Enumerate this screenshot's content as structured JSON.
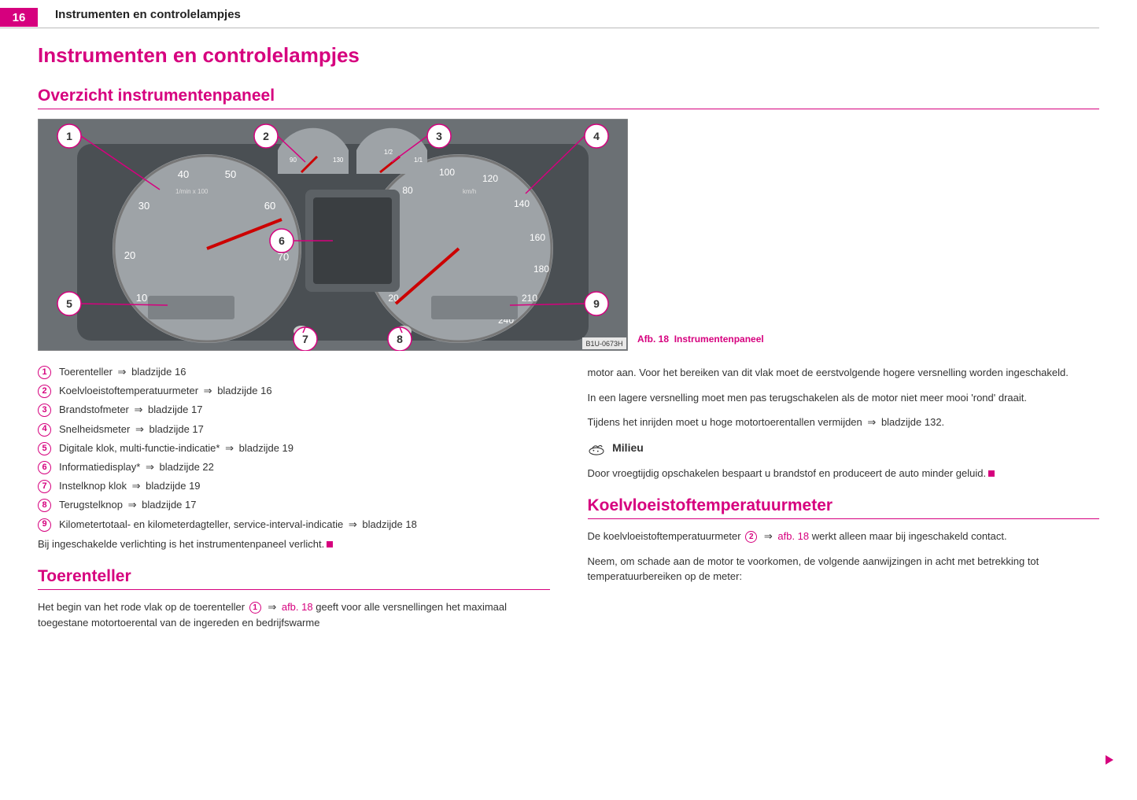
{
  "page_number": "16",
  "chapter_title": "Instrumenten en controlelampjes",
  "h1": "Instrumenten en controlelampjes",
  "h2_overview": "Overzicht instrumentenpaneel",
  "figure": {
    "caption_prefix": "Afb. 18",
    "caption_text": "Instrumentenpaneel",
    "image_code": "B1U-0673H",
    "bg": "#6b7074",
    "gauge_face": "#9ea3a7",
    "callout_color": "#d6007e",
    "tacho": {
      "ticks": [
        "10",
        "20",
        "30",
        "40",
        "50",
        "60",
        "70"
      ],
      "sublabel": "1/min x 100"
    },
    "speedo": {
      "ticks": [
        "20",
        "40",
        "60",
        "80",
        "100",
        "120",
        "140",
        "160",
        "180",
        "210",
        "240"
      ],
      "sublabel": "km/h"
    },
    "small_gauges": {
      "temp_max": "130",
      "temp_mid": "90",
      "fuel_half": "1/2",
      "fuel_full": "1/1"
    },
    "callouts": [
      "1",
      "2",
      "3",
      "4",
      "5",
      "6",
      "7",
      "8",
      "9"
    ]
  },
  "legend": [
    {
      "n": "1",
      "text": "Toerenteller",
      "page": "bladzijde 16"
    },
    {
      "n": "2",
      "text": "Koelvloeistoftemperatuurmeter",
      "page": "bladzijde 16"
    },
    {
      "n": "3",
      "text": "Brandstofmeter",
      "page": "bladzijde 17"
    },
    {
      "n": "4",
      "text": "Snelheidsmeter",
      "page": "bladzijde 17"
    },
    {
      "n": "5",
      "text": "Digitale klok, multi-functie-indicatie*",
      "page": "bladzijde 19"
    },
    {
      "n": "6",
      "text": "Informatiedisplay*",
      "page": "bladzijde 22"
    },
    {
      "n": "7",
      "text": "Instelknop klok",
      "page": "bladzijde 19"
    },
    {
      "n": "8",
      "text": "Terugstelknop",
      "page": "bladzijde 17"
    },
    {
      "n": "9",
      "text": "Kilometertotaal- en kilometerdagteller, service-interval-indicatie",
      "page": "bladzijde 18"
    }
  ],
  "footnote": "Bij ingeschakelde verlichting is het instrumentenpaneel verlicht.",
  "h2_toerenteller": "Toerenteller",
  "toerenteller_para_a": "Het begin van het rode vlak op de toerenteller",
  "toerenteller_ref": "afb. 18",
  "toerenteller_para_b": "geeft voor alle versnellingen het maximaal toegestane motortoerental van de ingereden en bedrijfswarme",
  "right_col": {
    "p1": "motor aan. Voor het bereiken van dit vlak moet de eerstvolgende hogere versnelling worden ingeschakeld.",
    "p2": "In een lagere versnelling moet men pas terugschakelen als de motor niet meer mooi 'rond' draait.",
    "p3a": "Tijdens het inrijden moet u hoge motortoerentallen vermijden",
    "p3_page": "bladzijde 132.",
    "milieu_label": "Milieu",
    "milieu_text": "Door vroegtijdig opschakelen bespaart u brandstof en produceert de auto minder geluid."
  },
  "h2_koelvloeistof": "Koelvloeistoftemperatuurmeter",
  "koel_p1a": "De koelvloeistoftemperatuurmeter",
  "koel_ref": "afb. 18",
  "koel_p1b": "werkt alleen maar bij ingeschakeld contact.",
  "koel_p2": "Neem, om schade aan de motor te voorkomen, de volgende aanwijzingen in acht met betrekking tot temperatuurbereiken op de meter:",
  "colors": {
    "accent": "#d6007e"
  }
}
